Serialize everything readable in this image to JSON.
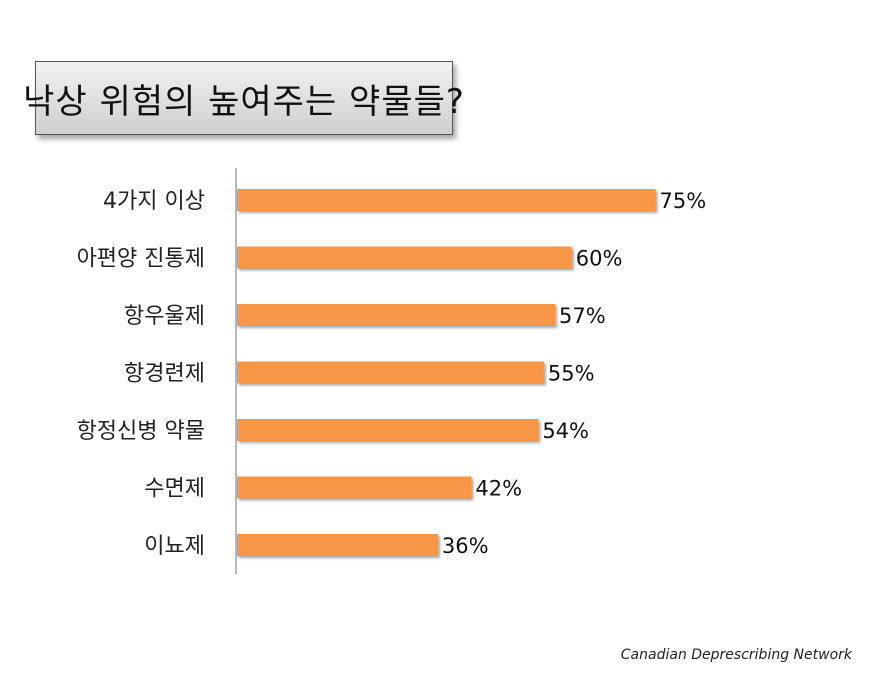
{
  "header": {
    "title": "낙상 위험의 높여주는 약물들?"
  },
  "credit": "Canadian Deprescribing Network",
  "chart_data": {
    "type": "bar",
    "orientation": "horizontal",
    "title": "낙상 위험의 높여주는 약물들?",
    "categories": [
      "4가지 이상",
      "아편양 진통제",
      "항우울제",
      "항경련제",
      "항정신병 약물",
      "수면제",
      "이뇨제"
    ],
    "values": [
      75,
      60,
      57,
      55,
      54,
      42,
      36
    ],
    "value_labels": [
      "75%",
      "60%",
      "57%",
      "55%",
      "54%",
      "42%",
      "36%"
    ],
    "xlim": [
      0,
      100
    ],
    "grid": false,
    "legend": "none",
    "bar_color": "#f79646"
  }
}
